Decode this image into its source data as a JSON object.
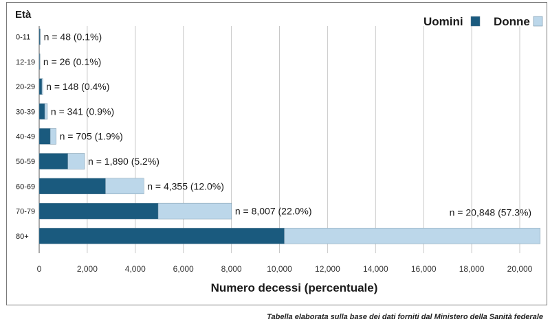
{
  "chart_data": {
    "type": "bar",
    "orientation": "horizontal",
    "stacked": true,
    "title": "",
    "ylabel": "Età",
    "xlabel": "Numero decessi (percentuale)",
    "categories": [
      "0-11",
      "12-19",
      "20-29",
      "30-39",
      "40-49",
      "50-59",
      "60-69",
      "70-79",
      "80+"
    ],
    "series": [
      {
        "name": "Uomini",
        "color": "#1a5a7e",
        "values": [
          30,
          18,
          110,
          230,
          460,
          1190,
          2760,
          4950,
          10200
        ]
      },
      {
        "name": "Donne",
        "color": "#bcd7ea",
        "values": [
          18,
          8,
          38,
          111,
          245,
          700,
          1595,
          3057,
          10648
        ]
      }
    ],
    "bar_labels": [
      "n = 48 (0.1%)",
      "n = 26 (0.1%)",
      "n = 148 (0.4%)",
      "n = 341 (0.9%)",
      "n = 705 (1.9%)",
      "n = 1,890 (5.2%)",
      "n = 4,355 (12.0%)",
      "n = 8,007 (22.0%)",
      "n = 20,848 (57.3%)"
    ],
    "xticks": [
      0,
      2000,
      4000,
      6000,
      8000,
      10000,
      12000,
      14000,
      16000,
      18000,
      20000
    ],
    "xtick_labels": [
      "0",
      "2,000",
      "4,000",
      "6,000",
      "8,000",
      "10,000",
      "12,000",
      "14,000",
      "16,000",
      "18,000",
      "20,000"
    ],
    "xlim": [
      0,
      20000
    ],
    "grid": "vertical",
    "legend_position": "top-right"
  },
  "caption": "Tabella elaborata sulla base dei dati forniti dal Ministero della Sanità federale"
}
